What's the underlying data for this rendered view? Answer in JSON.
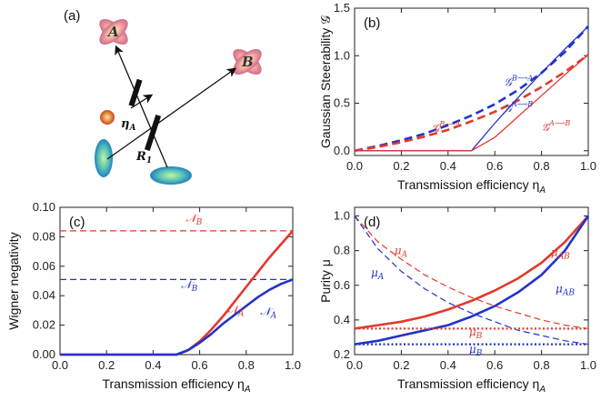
{
  "colors": {
    "red": "#e03a2e",
    "blue": "#2233cc",
    "grey": "#222222"
  },
  "diagram": {
    "panel_label": "(a)",
    "labels": {
      "A": "A",
      "B": "B",
      "eta": "η",
      "eta_sub": "A",
      "R": "R",
      "R_sub": "1"
    }
  },
  "chart_data": [
    {
      "id": "b",
      "type": "line",
      "panel_label": "(b)",
      "xlabel": "Transmission efficiency η",
      "xlabel_sub": "A",
      "ylabel": "Gaussian Steerability 𝒢",
      "xlim": [
        0,
        1
      ],
      "ylim": [
        -0.05,
        1.5
      ],
      "xticks": [
        0.0,
        0.2,
        0.4,
        0.6,
        0.8,
        1.0
      ],
      "yticks": [
        0.0,
        0.5,
        1.0,
        1.5
      ],
      "xtick_labels": [
        "0.0",
        "0.2",
        "0.4",
        "0.6",
        "0.8",
        "1.0"
      ],
      "ytick_labels": [
        "0.0",
        "0.5",
        "1.0",
        "1.5"
      ],
      "series": [
        {
          "color": "blue",
          "style": "dashed",
          "width": 2.6,
          "x": [
            0,
            0.1,
            0.2,
            0.3,
            0.4,
            0.5,
            0.6,
            0.7,
            0.8,
            0.9,
            1.0
          ],
          "y": [
            0.0,
            0.05,
            0.11,
            0.18,
            0.27,
            0.37,
            0.49,
            0.64,
            0.82,
            1.04,
            1.31
          ]
        },
        {
          "color": "red",
          "style": "dashed",
          "width": 2.6,
          "x": [
            0,
            0.1,
            0.2,
            0.3,
            0.4,
            0.5,
            0.6,
            0.7,
            0.8,
            0.9,
            1.0
          ],
          "y": [
            0.0,
            0.04,
            0.09,
            0.15,
            0.22,
            0.31,
            0.41,
            0.53,
            0.67,
            0.83,
            1.01
          ]
        },
        {
          "color": "blue",
          "style": "solid",
          "width": 1.3,
          "x": [
            0,
            0.5,
            0.6,
            0.7,
            0.8,
            0.9,
            1.0
          ],
          "y": [
            0.0,
            0.0,
            0.29,
            0.56,
            0.82,
            1.07,
            1.31
          ]
        },
        {
          "color": "red",
          "style": "solid",
          "width": 1.3,
          "x": [
            0,
            0.5,
            0.6,
            0.7,
            0.8,
            0.9,
            1.0
          ],
          "y": [
            0.0,
            0.0,
            0.14,
            0.36,
            0.58,
            0.8,
            1.01
          ]
        }
      ],
      "annotations": [
        {
          "text": "𝒢",
          "sup": "B⟶A",
          "color": "blue",
          "x": 0.64,
          "y": 0.68
        },
        {
          "text": "𝒢",
          "sup": "A⟶B",
          "color": "blue",
          "x": 0.64,
          "y": 0.41
        },
        {
          "text": "𝒢",
          "sup": "B⟶A",
          "color": "red",
          "x": 0.33,
          "y": 0.2
        },
        {
          "text": "𝒢",
          "sup": "A⟶B",
          "color": "red",
          "x": 0.8,
          "y": 0.21
        }
      ]
    },
    {
      "id": "c",
      "type": "line",
      "panel_label": "(c)",
      "xlabel": "Transmission efficiency η",
      "xlabel_sub": "A",
      "ylabel": "Wigner negativity",
      "xlim": [
        0,
        1
      ],
      "ylim": [
        0,
        0.1
      ],
      "xticks": [
        0.0,
        0.2,
        0.4,
        0.6,
        0.8,
        1.0
      ],
      "yticks": [
        0.0,
        0.02,
        0.04,
        0.06,
        0.08,
        0.1
      ],
      "xtick_labels": [
        "0.0",
        "0.2",
        "0.4",
        "0.6",
        "0.8",
        "1.0"
      ],
      "ytick_labels": [
        "0.00",
        "0.02",
        "0.04",
        "0.06",
        "0.08",
        "0.10"
      ],
      "series": [
        {
          "color": "red",
          "style": "dashed",
          "width": 1.2,
          "x": [
            0,
            1
          ],
          "y": [
            0.084,
            0.084
          ]
        },
        {
          "color": "blue",
          "style": "dashed",
          "width": 1.2,
          "x": [
            0,
            1
          ],
          "y": [
            0.051,
            0.051
          ]
        },
        {
          "color": "red",
          "style": "solid",
          "width": 2.6,
          "x": [
            0,
            0.5,
            0.55,
            0.6,
            0.65,
            0.7,
            0.75,
            0.8,
            0.85,
            0.9,
            0.95,
            1.0
          ],
          "y": [
            0,
            0,
            0.003,
            0.009,
            0.017,
            0.026,
            0.036,
            0.046,
            0.056,
            0.066,
            0.075,
            0.084
          ]
        },
        {
          "color": "blue",
          "style": "solid",
          "width": 2.6,
          "x": [
            0,
            0.5,
            0.55,
            0.6,
            0.65,
            0.7,
            0.75,
            0.8,
            0.85,
            0.9,
            0.95,
            1.0
          ],
          "y": [
            0,
            0,
            0.003,
            0.008,
            0.014,
            0.021,
            0.027,
            0.033,
            0.039,
            0.044,
            0.048,
            0.051
          ]
        }
      ],
      "annotations": [
        {
          "text": "𝒩",
          "sub": "B",
          "color": "red",
          "x": 0.54,
          "y": 0.09
        },
        {
          "text": "𝒩",
          "sub": "B",
          "color": "blue",
          "x": 0.52,
          "y": 0.045
        },
        {
          "text": "𝒩",
          "sub": "A",
          "color": "red",
          "x": 0.72,
          "y": 0.028
        },
        {
          "text": "𝒩",
          "sub": "A",
          "color": "blue",
          "x": 0.86,
          "y": 0.027
        }
      ]
    },
    {
      "id": "d",
      "type": "line",
      "panel_label": "(d)",
      "xlabel": "Transmission efficiency η",
      "xlabel_sub": "A",
      "ylabel": "Purity μ",
      "xlim": [
        0,
        1
      ],
      "ylim": [
        0.2,
        1.05
      ],
      "xticks": [
        0.0,
        0.2,
        0.4,
        0.6,
        0.8,
        1.0
      ],
      "yticks": [
        0.2,
        0.4,
        0.6,
        0.8,
        1.0
      ],
      "xtick_labels": [
        "0.0",
        "0.2",
        "0.4",
        "0.6",
        "0.8",
        "1.0"
      ],
      "ytick_labels": [
        "0.2",
        "0.4",
        "0.6",
        "0.8",
        "1.0"
      ],
      "series": [
        {
          "color": "red",
          "style": "solid",
          "width": 2.6,
          "x": [
            0,
            0.1,
            0.2,
            0.3,
            0.4,
            0.5,
            0.6,
            0.7,
            0.8,
            0.9,
            1.0
          ],
          "y": [
            0.35,
            0.37,
            0.39,
            0.42,
            0.46,
            0.51,
            0.57,
            0.64,
            0.73,
            0.85,
            1.0
          ]
        },
        {
          "color": "blue",
          "style": "solid",
          "width": 2.6,
          "x": [
            0,
            0.1,
            0.2,
            0.3,
            0.4,
            0.5,
            0.6,
            0.7,
            0.8,
            0.9,
            1.0
          ],
          "y": [
            0.26,
            0.28,
            0.31,
            0.34,
            0.37,
            0.42,
            0.48,
            0.56,
            0.66,
            0.8,
            1.0
          ]
        },
        {
          "color": "red",
          "style": "dashed",
          "width": 1.2,
          "x": [
            0,
            0.1,
            0.2,
            0.3,
            0.4,
            0.5,
            0.6,
            0.7,
            0.8,
            0.9,
            1.0
          ],
          "y": [
            1.0,
            0.85,
            0.75,
            0.66,
            0.59,
            0.53,
            0.48,
            0.44,
            0.4,
            0.37,
            0.35
          ]
        },
        {
          "color": "blue",
          "style": "dashed",
          "width": 1.2,
          "x": [
            0,
            0.1,
            0.2,
            0.3,
            0.4,
            0.5,
            0.6,
            0.7,
            0.8,
            0.9,
            1.0
          ],
          "y": [
            1.0,
            0.81,
            0.68,
            0.58,
            0.5,
            0.44,
            0.39,
            0.34,
            0.31,
            0.28,
            0.26
          ]
        },
        {
          "color": "red",
          "style": "dotted",
          "width": 2.2,
          "x": [
            0,
            1
          ],
          "y": [
            0.35,
            0.35
          ]
        },
        {
          "color": "blue",
          "style": "dotted",
          "width": 2.2,
          "x": [
            0,
            1
          ],
          "y": [
            0.26,
            0.26
          ]
        }
      ],
      "annotations": [
        {
          "text": "μ",
          "sub": "A",
          "color": "red",
          "x": 0.17,
          "y": 0.78
        },
        {
          "text": "μ",
          "sub": "A",
          "color": "blue",
          "x": 0.07,
          "y": 0.65
        },
        {
          "text": "μ",
          "sub": "AB",
          "color": "red",
          "x": 0.84,
          "y": 0.77
        },
        {
          "text": "μ",
          "sub": "AB",
          "color": "blue",
          "x": 0.86,
          "y": 0.56
        },
        {
          "text": "μ",
          "sub": "B",
          "color": "red",
          "x": 0.49,
          "y": 0.31
        },
        {
          "text": "μ",
          "sub": "B",
          "color": "blue",
          "x": 0.49,
          "y": 0.21
        }
      ]
    }
  ]
}
